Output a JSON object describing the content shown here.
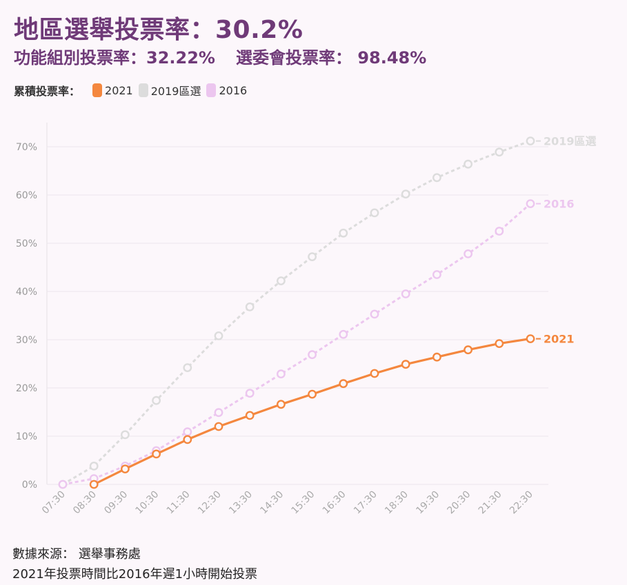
{
  "header": {
    "title": "地區選舉投票率：30.2%",
    "functional_label": "功能組別投票率：32.22%",
    "committee_label": "選委會投票率： 98.48%"
  },
  "legend": {
    "title": "累積投票率："
  },
  "footer": {
    "source": "數據來源： 選舉事務處",
    "note": "2021年投票時間比2016年遲1小時開始投票"
  },
  "chart_data": {
    "type": "line",
    "x": [
      "07:30",
      "08:30",
      "09:30",
      "10:30",
      "11:30",
      "12:30",
      "13:30",
      "14:30",
      "15:30",
      "16:30",
      "17:30",
      "18:30",
      "19:30",
      "20:30",
      "21:30",
      "22:30"
    ],
    "ylim": [
      0,
      70
    ],
    "yticks": [
      0,
      10,
      20,
      30,
      40,
      50,
      60,
      70
    ],
    "ytick_labels": [
      "0%",
      "10%",
      "20%",
      "30%",
      "40%",
      "50%",
      "60%",
      "70%"
    ],
    "grid": true,
    "series": [
      {
        "name": "2019區選",
        "color": "#dcdcdc",
        "dashed": true,
        "values": [
          0,
          3.8,
          10.3,
          17.4,
          24.2,
          30.8,
          36.8,
          42.2,
          47.2,
          52.1,
          56.3,
          60.2,
          63.6,
          66.4,
          68.9,
          71.2
        ]
      },
      {
        "name": "2016",
        "color": "#ecc6ef",
        "dashed": true,
        "values": [
          0,
          1.2,
          3.8,
          7.0,
          10.9,
          14.9,
          18.9,
          22.9,
          26.9,
          31.1,
          35.3,
          39.5,
          43.5,
          47.8,
          52.5,
          58.2
        ]
      },
      {
        "name": "2021",
        "color": "#f4873e",
        "dashed": false,
        "values": [
          null,
          0,
          3.2,
          6.3,
          9.3,
          12.0,
          14.3,
          16.6,
          18.7,
          20.9,
          23.0,
          24.9,
          26.4,
          27.9,
          29.2,
          30.2
        ]
      }
    ]
  }
}
